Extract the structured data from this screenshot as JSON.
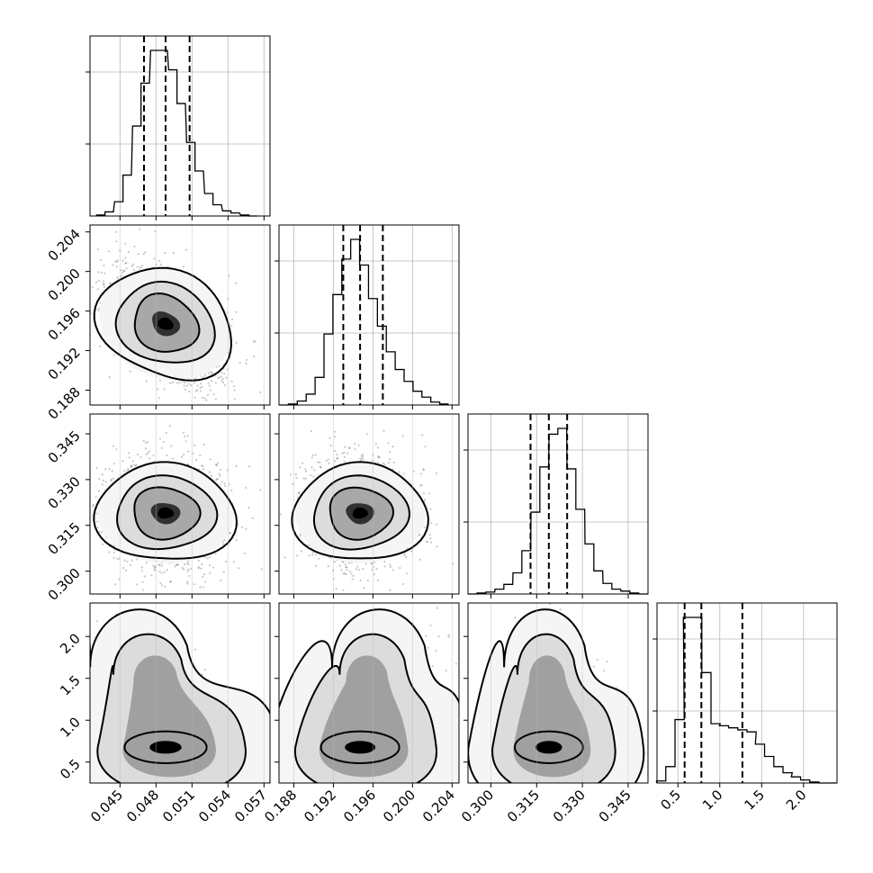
{
  "chart_data": {
    "type": "corner",
    "grid": true,
    "parameters": [
      {
        "range": [
          0.0425,
          0.0575
        ],
        "ticks": [
          0.045,
          0.048,
          0.051,
          0.054,
          0.057
        ],
        "tick_labels": [
          "0.045",
          "0.048",
          "0.051",
          "0.054",
          "0.057"
        ],
        "quantiles": [
          0.047,
          0.0488,
          0.0508
        ],
        "hist_peak": 0.0488,
        "hist_sigma": 0.0019,
        "skew": 0.0
      },
      {
        "range": [
          0.1865,
          0.2047
        ],
        "ticks": [
          0.188,
          0.192,
          0.196,
          0.2,
          0.204
        ],
        "tick_labels": [
          "0.188",
          "0.192",
          "0.196",
          "0.200",
          "0.204"
        ],
        "quantiles": [
          0.193,
          0.1947,
          0.197
        ],
        "hist_peak": 0.1947,
        "hist_sigma": 0.0022,
        "skew": 0.25
      },
      {
        "range": [
          0.2925,
          0.3515
        ],
        "ticks": [
          0.3,
          0.315,
          0.33,
          0.345
        ],
        "tick_labels": [
          "0.300",
          "0.315",
          "0.330",
          "0.345"
        ],
        "quantiles": [
          0.313,
          0.319,
          0.325
        ],
        "hist_peak": 0.319,
        "hist_sigma": 0.0062,
        "skew": 0.0
      },
      {
        "range": [
          0.25,
          2.4
        ],
        "ticks": [
          0.5,
          1.0,
          1.5,
          2.0
        ],
        "tick_labels": [
          "0.5",
          "1.0",
          "1.5",
          "2.0"
        ],
        "quantiles": [
          0.58,
          0.78,
          1.27
        ],
        "hist_peak": 0.62,
        "hist_sigma": 0.35,
        "skew": 1.0
      }
    ],
    "histograms": [
      {
        "param": 0,
        "bin_centers": [
          0.0434,
          0.0441,
          0.0449,
          0.0456,
          0.0464,
          0.0471,
          0.0479,
          0.0486,
          0.0494,
          0.0501,
          0.0509,
          0.0516,
          0.0524,
          0.0531,
          0.0539,
          0.0546,
          0.0554,
          0.0561
        ],
        "counts": [
          1,
          4,
          14,
          40,
          88,
          130,
          162,
          162,
          143,
          110,
          72,
          44,
          22,
          11,
          5,
          3,
          1,
          0
        ]
      },
      {
        "param": 1,
        "bin_centers": [
          0.187,
          0.1879,
          0.1888,
          0.1897,
          0.1906,
          0.1915,
          0.1924,
          0.1933,
          0.1942,
          0.1951,
          0.196,
          0.1969,
          0.1978,
          0.1987,
          0.1996,
          0.2005,
          0.2014,
          0.2023,
          0.2032
        ],
        "counts": [
          0,
          1,
          4,
          11,
          28,
          72,
          112,
          148,
          168,
          142,
          108,
          80,
          54,
          36,
          24,
          14,
          8,
          3,
          1
        ]
      },
      {
        "param": 2,
        "bin_centers": [
          0.294,
          0.2969,
          0.2998,
          0.3028,
          0.3057,
          0.3087,
          0.3116,
          0.3146,
          0.3175,
          0.3205,
          0.3234,
          0.3264,
          0.3293,
          0.3323,
          0.3352,
          0.3382,
          0.3411,
          0.3441,
          0.347,
          0.35
        ],
        "counts": [
          0,
          1,
          2,
          5,
          10,
          22,
          45,
          85,
          132,
          166,
          172,
          130,
          88,
          52,
          24,
          11,
          5,
          3,
          1,
          0
        ]
      },
      {
        "param": 3,
        "bin_centers": [
          0.3,
          0.41,
          0.52,
          0.62,
          0.73,
          0.84,
          0.95,
          1.05,
          1.16,
          1.27,
          1.38,
          1.48,
          1.59,
          1.7,
          1.81,
          1.91,
          2.02,
          2.13,
          2.24,
          2.34
        ],
        "counts": [
          2,
          16,
          62,
          162,
          162,
          108,
          58,
          56,
          54,
          52,
          50,
          38,
          26,
          16,
          10,
          6,
          3,
          1,
          0,
          0
        ]
      }
    ],
    "joint_2d": [
      {
        "x_param": 0,
        "y_param": 1,
        "correlation": -0.45
      },
      {
        "x_param": 0,
        "y_param": 2,
        "correlation": -0.05
      },
      {
        "x_param": 1,
        "y_param": 2,
        "correlation": 0.0
      },
      {
        "x_param": 0,
        "y_param": 3,
        "correlation": -0.3
      },
      {
        "x_param": 1,
        "y_param": 3,
        "correlation": 0.45
      },
      {
        "x_param": 2,
        "y_param": 3,
        "correlation": 0.05
      }
    ]
  }
}
